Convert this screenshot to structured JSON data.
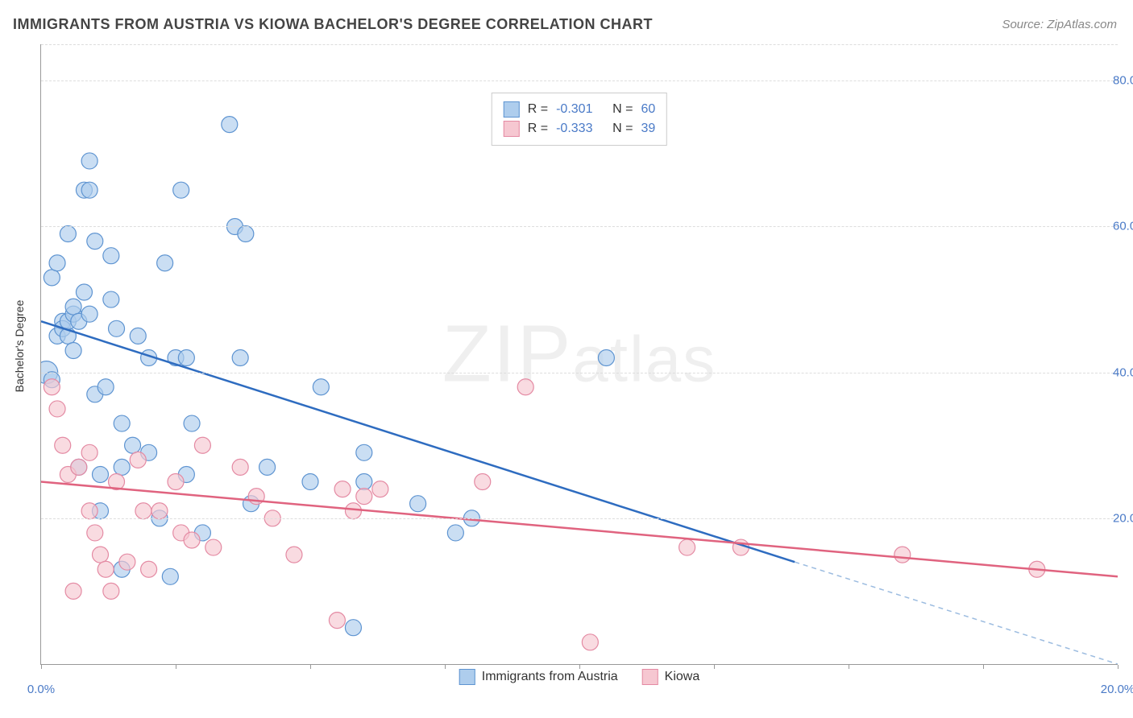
{
  "title": "IMMIGRANTS FROM AUSTRIA VS KIOWA BACHELOR'S DEGREE CORRELATION CHART",
  "source": "Source: ZipAtlas.com",
  "ylabel": "Bachelor's Degree",
  "watermark_a": "ZIP",
  "watermark_b": "atlas",
  "chart": {
    "type": "scatter",
    "x_domain": [
      0,
      20
    ],
    "y_domain": [
      0,
      85
    ],
    "x_ticks": [
      0,
      20
    ],
    "x_tick_labels": [
      "0.0%",
      "20.0%"
    ],
    "x_minor_ticks": [
      2.5,
      5,
      7.5,
      10,
      12.5,
      15,
      17.5
    ],
    "y_ticks": [
      20,
      40,
      60,
      80
    ],
    "y_tick_labels": [
      "20.0%",
      "40.0%",
      "60.0%",
      "80.0%"
    ],
    "grid_color": "#dddddd",
    "axis_color": "#999999",
    "bg": "#ffffff",
    "label_color": "#4a7ac7",
    "label_fontsize": 15,
    "series": [
      {
        "key": "austria",
        "label": "Immigrants from Austria",
        "marker_fill": "#aecded",
        "marker_stroke": "#5e94d1",
        "line_color": "#2e6cc0",
        "dash_color": "#9cbce0",
        "r": 10,
        "R": -0.301,
        "N": 60,
        "trend": {
          "x1": 0,
          "y1": 47,
          "x2": 14,
          "y2": 14,
          "dash_to_x": 20,
          "dash_to_y": 0
        },
        "points": [
          [
            0.1,
            40,
            14
          ],
          [
            0.2,
            39
          ],
          [
            0.2,
            53
          ],
          [
            0.3,
            55
          ],
          [
            0.3,
            45
          ],
          [
            0.4,
            47
          ],
          [
            0.4,
            46
          ],
          [
            0.5,
            45
          ],
          [
            0.5,
            47
          ],
          [
            0.5,
            59
          ],
          [
            0.6,
            48
          ],
          [
            0.6,
            49
          ],
          [
            0.6,
            43
          ],
          [
            0.7,
            47
          ],
          [
            0.7,
            27
          ],
          [
            0.8,
            65
          ],
          [
            0.8,
            51
          ],
          [
            0.9,
            65
          ],
          [
            0.9,
            69
          ],
          [
            0.9,
            48
          ],
          [
            1.0,
            58
          ],
          [
            1.0,
            37
          ],
          [
            1.1,
            26
          ],
          [
            1.1,
            21
          ],
          [
            1.2,
            38
          ],
          [
            1.3,
            56
          ],
          [
            1.3,
            50
          ],
          [
            1.4,
            46
          ],
          [
            1.5,
            13
          ],
          [
            1.5,
            27
          ],
          [
            1.5,
            33
          ],
          [
            1.7,
            30
          ],
          [
            1.8,
            45
          ],
          [
            2.0,
            42
          ],
          [
            2.0,
            29
          ],
          [
            2.2,
            20
          ],
          [
            2.3,
            55
          ],
          [
            2.4,
            12
          ],
          [
            2.5,
            42
          ],
          [
            2.6,
            65
          ],
          [
            2.7,
            42
          ],
          [
            2.7,
            26
          ],
          [
            2.8,
            33
          ],
          [
            3.0,
            18
          ],
          [
            3.5,
            74
          ],
          [
            3.6,
            60
          ],
          [
            3.7,
            42
          ],
          [
            3.8,
            59
          ],
          [
            3.9,
            22
          ],
          [
            4.2,
            27
          ],
          [
            5.0,
            25
          ],
          [
            5.2,
            38
          ],
          [
            5.8,
            5
          ],
          [
            6.0,
            25
          ],
          [
            6.0,
            29
          ],
          [
            7.0,
            22
          ],
          [
            7.7,
            18
          ],
          [
            8.0,
            20
          ],
          [
            10.5,
            42
          ]
        ]
      },
      {
        "key": "kiowa",
        "label": "Kiowa",
        "marker_fill": "#f6c7d1",
        "marker_stroke": "#e48aa3",
        "line_color": "#e0637f",
        "r": 10,
        "R": -0.333,
        "N": 39,
        "trend": {
          "x1": 0,
          "y1": 25,
          "x2": 20,
          "y2": 12
        },
        "points": [
          [
            0.2,
            38
          ],
          [
            0.3,
            35
          ],
          [
            0.4,
            30
          ],
          [
            0.5,
            26
          ],
          [
            0.6,
            10
          ],
          [
            0.7,
            27
          ],
          [
            0.9,
            29
          ],
          [
            0.9,
            21
          ],
          [
            1.0,
            18
          ],
          [
            1.1,
            15
          ],
          [
            1.2,
            13
          ],
          [
            1.3,
            10
          ],
          [
            1.4,
            25
          ],
          [
            1.6,
            14
          ],
          [
            1.8,
            28
          ],
          [
            1.9,
            21
          ],
          [
            2.0,
            13
          ],
          [
            2.2,
            21
          ],
          [
            2.5,
            25
          ],
          [
            2.6,
            18
          ],
          [
            2.8,
            17
          ],
          [
            3.0,
            30
          ],
          [
            3.2,
            16
          ],
          [
            3.7,
            27
          ],
          [
            4.0,
            23
          ],
          [
            4.3,
            20
          ],
          [
            4.7,
            15
          ],
          [
            5.5,
            6
          ],
          [
            5.6,
            24
          ],
          [
            5.8,
            21
          ],
          [
            6.0,
            23
          ],
          [
            6.3,
            24
          ],
          [
            8.2,
            25
          ],
          [
            9.0,
            38
          ],
          [
            10.2,
            3
          ],
          [
            12.0,
            16
          ],
          [
            13.0,
            16
          ],
          [
            16.0,
            15
          ],
          [
            18.5,
            13
          ]
        ]
      }
    ],
    "legend_stats_label_R": "R =",
    "legend_stats_label_N": "N ="
  }
}
